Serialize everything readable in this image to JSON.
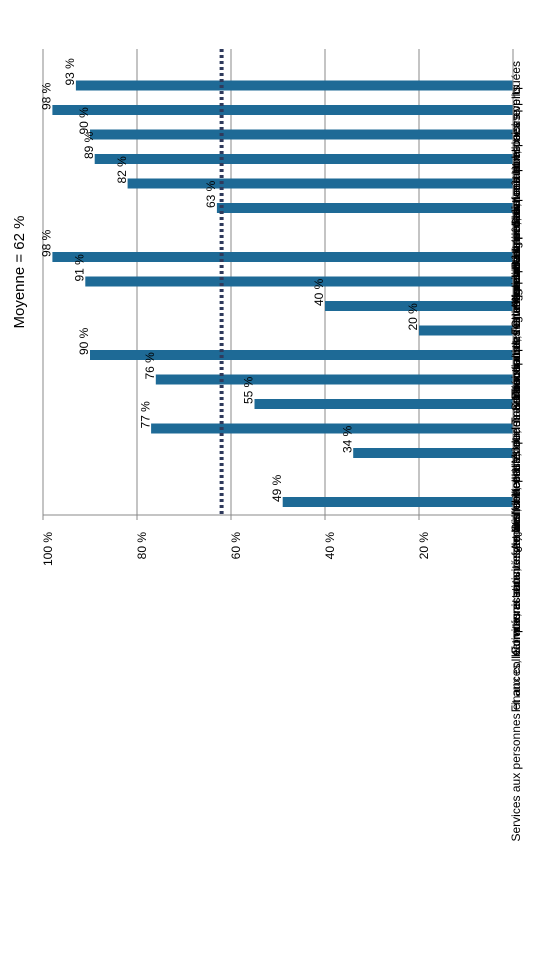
{
  "chart_data": {
    "type": "bar",
    "orientation": "vertical (figure rotated 90° counter-clockwise)",
    "categories": [
      "Sciences humaines appliquées",
      "Agriculture, pêche, forêt et espaces verts",
      "Agroalimentaire, alimentation, cuisine",
      "Bâtiment, travaux publics",
      "Moteurs et mécanique auto",
      "Fonctions transversales de la production",
      "Formations industrielles",
      "Chimie, plasturgie",
      "Mode, matériaux souples et céramique",
      "Transports, logistique",
      "Commerce, vente",
      "Fonctions transverses des entreprises et des administrations",
      "Travail social",
      "Santé",
      "Accueil, hôtellerie, tourisme",
      "Coiffure, esthétique",
      "Communication, information et culture",
      "Finances, banque, assurances et immobilier",
      "Services aux personnes et aux collectivités et activités de loisirs"
    ],
    "values": [
      null,
      93,
      98,
      90,
      89,
      82,
      63,
      null,
      98,
      91,
      40,
      20,
      90,
      76,
      55,
      77,
      34,
      null,
      49
    ],
    "data_labels": [
      "",
      "93 %",
      "98 %",
      "90 %",
      "89 %",
      "82 %",
      "63 %",
      "",
      "98 %",
      "91 %",
      "40 %",
      "20 %",
      "90 %",
      "76 %",
      "55 %",
      "77 %",
      "34 %",
      "",
      "49 %"
    ],
    "ylim": [
      0,
      100
    ],
    "yticks": [
      0,
      20,
      40,
      60,
      80,
      100
    ],
    "ytick_labels": [
      "0 %",
      "20 %",
      "40 %",
      "60 %",
      "80 %",
      "100 %"
    ],
    "reference_line": {
      "value": 62,
      "label": "Moyenne = 62 %",
      "style": "dotted"
    },
    "grid": true,
    "bar_color": "#1e6a96",
    "reference_color": "#2f3a5c",
    "grid_color": "#888888"
  }
}
